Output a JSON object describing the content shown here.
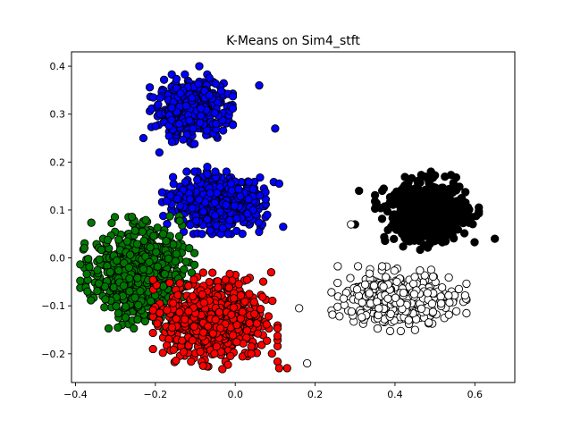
{
  "chart_data": {
    "type": "scatter",
    "title": "K-Means on Sim4_stft",
    "xlabel": "",
    "ylabel": "",
    "xlim": [
      -0.41,
      0.7
    ],
    "ylim": [
      -0.26,
      0.43
    ],
    "x_ticks": [
      -0.4,
      -0.2,
      0.0,
      0.2,
      0.4,
      0.6
    ],
    "x_tick_labels": [
      "−0.4",
      "−0.2",
      "0.0",
      "0.2",
      "0.4",
      "0.6"
    ],
    "y_ticks": [
      -0.2,
      -0.1,
      0.0,
      0.1,
      0.2,
      0.3,
      0.4
    ],
    "y_tick_labels": [
      "−0.2",
      "−0.1",
      "0.0",
      "0.1",
      "0.2",
      "0.3",
      "0.4"
    ],
    "grid": false,
    "legend": "none",
    "marker_edge_color": "#000000",
    "clusters": [
      {
        "color": "#0000ff",
        "cx": -0.11,
        "cy": 0.31,
        "sx": 0.04,
        "sy": 0.028,
        "n": 520,
        "extra_points": [
          [
            -0.23,
            0.25
          ],
          [
            0.1,
            0.27
          ],
          [
            -0.09,
            0.4
          ],
          [
            -0.19,
            0.22
          ],
          [
            0.06,
            0.36
          ]
        ]
      },
      {
        "color": "#0000ff",
        "cx": -0.04,
        "cy": 0.115,
        "sx": 0.055,
        "sy": 0.025,
        "n": 600,
        "extra_points": [
          [
            -0.07,
            0.19
          ],
          [
            0.11,
            0.155
          ],
          [
            0.12,
            0.065
          ]
        ]
      },
      {
        "color": "#000000",
        "cx": 0.48,
        "cy": 0.095,
        "sx": 0.05,
        "sy": 0.03,
        "n": 600,
        "extra_points": [
          [
            0.31,
            0.14
          ],
          [
            0.65,
            0.04
          ],
          [
            0.3,
            0.07
          ],
          [
            0.49,
            0.18
          ]
        ]
      },
      {
        "color": "#ffffff",
        "cx": 0.41,
        "cy": -0.085,
        "sx": 0.065,
        "sy": 0.026,
        "n": 450,
        "extra_points": [
          [
            0.18,
            -0.22
          ],
          [
            0.16,
            -0.105
          ],
          [
            0.56,
            -0.065
          ],
          [
            0.29,
            0.07
          ]
        ]
      },
      {
        "color": "#007700",
        "cx": -0.245,
        "cy": -0.03,
        "sx": 0.055,
        "sy": 0.045,
        "n": 700,
        "extra_points": [
          [
            -0.37,
            -0.07
          ],
          [
            -0.18,
            -0.15
          ]
        ]
      },
      {
        "color": "#ff0000",
        "cx": -0.05,
        "cy": -0.13,
        "sx": 0.06,
        "sy": 0.04,
        "n": 750,
        "extra_points": [
          [
            0.13,
            -0.23
          ],
          [
            0.11,
            -0.23
          ],
          [
            0.04,
            -0.2
          ],
          [
            0.09,
            -0.03
          ]
        ]
      }
    ]
  }
}
